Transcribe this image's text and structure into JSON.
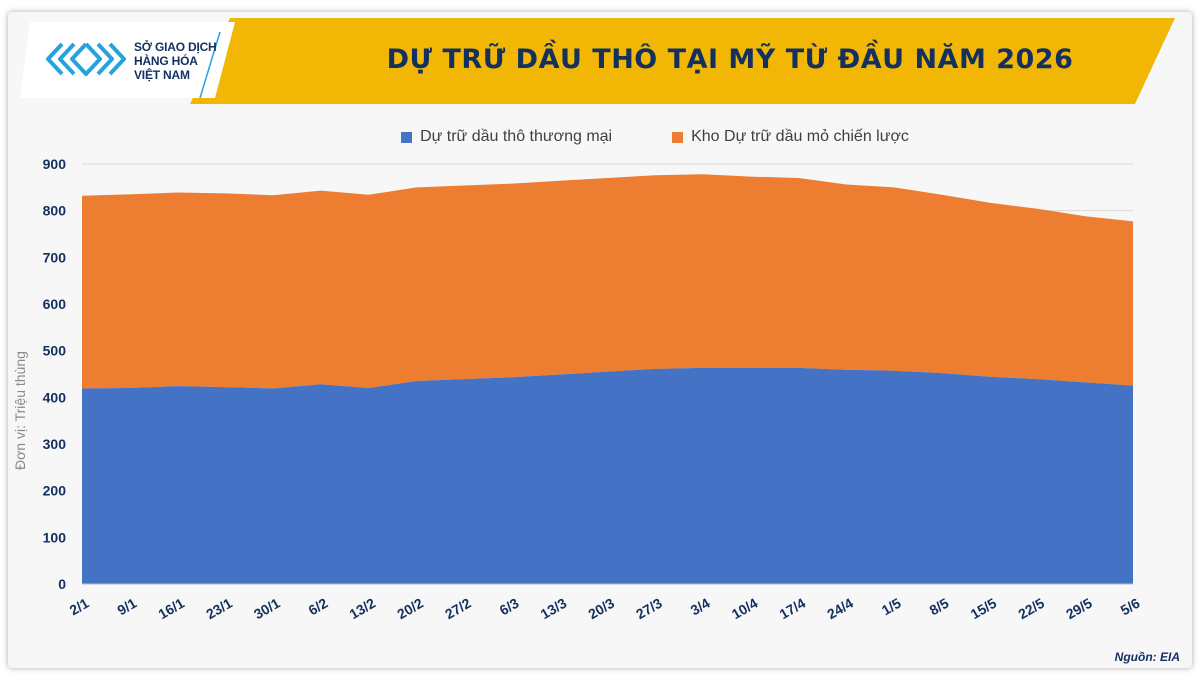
{
  "header": {
    "title": "DỰ TRỮ DẦU THÔ TẠI MỸ TỪ ĐẦU NĂM 2026",
    "logo_lines": [
      "SỞ GIAO DỊCH",
      "HÀNG HÓA",
      "VIỆT NAM"
    ],
    "banner_color": "#f2b705",
    "title_color": "#13305f"
  },
  "footer": {
    "source": "Nguồn: EIA"
  },
  "chart_data": {
    "type": "area",
    "stacked": true,
    "title": "DỰ TRỮ DẦU THÔ TẠI MỸ TỪ ĐẦU NĂM 2026",
    "ylabel": "Đơn vị: Triệu thùng",
    "xlabel": "",
    "ylim": [
      0,
      900
    ],
    "yticks": [
      0,
      100,
      200,
      300,
      400,
      500,
      600,
      700,
      800,
      900
    ],
    "grid": "horizontal",
    "legend_position": "top",
    "categories": [
      "2/1",
      "9/1",
      "16/1",
      "23/1",
      "30/1",
      "6/2",
      "13/2",
      "20/2",
      "27/2",
      "6/3",
      "13/3",
      "20/3",
      "27/3",
      "3/4",
      "10/4",
      "17/4",
      "24/4",
      "1/5",
      "8/5",
      "15/5",
      "22/5",
      "29/5",
      "5/6"
    ],
    "series": [
      {
        "name": "Dự trữ dầu thô thương mại",
        "color": "#4472c4",
        "values": [
          419,
          420,
          424,
          422,
          419,
          428,
          420,
          435,
          439,
          443,
          449,
          455,
          461,
          463,
          463,
          463,
          459,
          457,
          452,
          444,
          439,
          432,
          425
        ]
      },
      {
        "name": "Kho Dự trữ dầu mỏ chiến lược",
        "color": "#ed7d31",
        "values": [
          413,
          415,
          415,
          415,
          414,
          415,
          414,
          415,
          415,
          415,
          415,
          415,
          415,
          415,
          410,
          407,
          397,
          393,
          382,
          373,
          365,
          356,
          352
        ]
      }
    ]
  }
}
